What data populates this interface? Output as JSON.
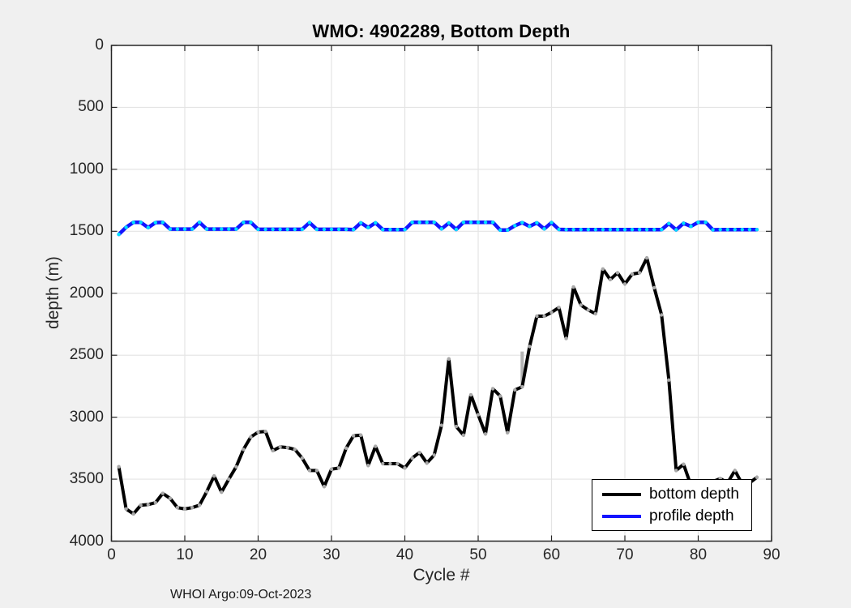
{
  "figure": {
    "background_color": "#f0f0f0",
    "plot_background_color": "#ffffff",
    "axis_color": "#262626",
    "grid_color": "#e4e4e4",
    "footer": "WHOI Argo:09-Oct-2023"
  },
  "chart_data": {
    "type": "line",
    "title": "WMO: 4902289, Bottom Depth",
    "xlabel": "Cycle #",
    "ylabel": "depth (m)",
    "xlim": [
      0,
      90
    ],
    "ylim": [
      0,
      4000
    ],
    "y_axis_reversed_depth_down": true,
    "grid": true,
    "xticks": [
      0,
      10,
      20,
      30,
      40,
      50,
      60,
      70,
      80,
      90
    ],
    "yticks": [
      0,
      500,
      1000,
      1500,
      2000,
      2500,
      3000,
      3500,
      4000
    ],
    "legend": {
      "position": "bottom-right",
      "entries": [
        {
          "label": "bottom depth",
          "color": "#000000"
        },
        {
          "label": "profile depth",
          "color": "#1414ff"
        }
      ]
    },
    "series": [
      {
        "name": "bottom depth",
        "color": "#000000",
        "marker_color": "#a9a9a9",
        "line_width": 4,
        "x": [
          1,
          2,
          3,
          4,
          5,
          6,
          7,
          8,
          9,
          10,
          11,
          12,
          13,
          14,
          15,
          16,
          17,
          18,
          19,
          20,
          21,
          22,
          23,
          24,
          25,
          26,
          27,
          28,
          29,
          30,
          31,
          32,
          33,
          34,
          35,
          36,
          37,
          38,
          39,
          40,
          41,
          42,
          43,
          44,
          45,
          46,
          47,
          48,
          49,
          50,
          51,
          52,
          53,
          54,
          55,
          56,
          57,
          58,
          59,
          60,
          61,
          62,
          63,
          64,
          65,
          66,
          67,
          68,
          69,
          70,
          71,
          72,
          73,
          74,
          75,
          76,
          77,
          78,
          79,
          80,
          81,
          82,
          83,
          84,
          85,
          86,
          87,
          88
        ],
        "y": [
          3400,
          3740,
          3780,
          3710,
          3705,
          3690,
          3615,
          3655,
          3730,
          3740,
          3730,
          3710,
          3600,
          3475,
          3605,
          3500,
          3400,
          3260,
          3160,
          3120,
          3115,
          3270,
          3240,
          3245,
          3260,
          3330,
          3430,
          3430,
          3560,
          3420,
          3410,
          3250,
          3150,
          3145,
          3390,
          3235,
          3375,
          3375,
          3375,
          3410,
          3330,
          3285,
          3370,
          3305,
          3065,
          2530,
          3075,
          3145,
          2820,
          2980,
          3135,
          2770,
          2830,
          3125,
          2780,
          2755,
          2430,
          2185,
          2185,
          2155,
          2115,
          2365,
          1950,
          2095,
          2135,
          2165,
          1805,
          1890,
          1835,
          1925,
          1845,
          1835,
          1715,
          1955,
          2175,
          2700,
          3430,
          3380,
          3550,
          3570,
          3560,
          3520,
          3495,
          3530,
          3430,
          3540,
          3530,
          3485
        ]
      },
      {
        "name": "profile depth",
        "color": "#1414ff",
        "marker_color": "#00e0ff",
        "line_width": 4.5,
        "x": [
          1,
          2,
          3,
          4,
          5,
          6,
          7,
          8,
          9,
          10,
          11,
          12,
          13,
          14,
          15,
          16,
          17,
          18,
          19,
          20,
          21,
          22,
          23,
          24,
          25,
          26,
          27,
          28,
          29,
          30,
          31,
          32,
          33,
          34,
          35,
          36,
          37,
          38,
          39,
          40,
          41,
          42,
          43,
          44,
          45,
          46,
          47,
          48,
          49,
          50,
          51,
          52,
          53,
          54,
          55,
          56,
          57,
          58,
          59,
          60,
          61,
          62,
          63,
          64,
          65,
          66,
          67,
          68,
          69,
          70,
          71,
          72,
          73,
          74,
          75,
          76,
          77,
          78,
          79,
          80,
          81,
          82,
          83,
          84,
          85,
          86,
          87,
          88
        ],
        "y": [
          1525,
          1468,
          1428,
          1428,
          1470,
          1430,
          1428,
          1482,
          1482,
          1482,
          1482,
          1428,
          1482,
          1482,
          1482,
          1482,
          1482,
          1428,
          1428,
          1484,
          1484,
          1484,
          1484,
          1484,
          1484,
          1484,
          1430,
          1484,
          1484,
          1484,
          1484,
          1484,
          1486,
          1432,
          1470,
          1432,
          1486,
          1486,
          1486,
          1486,
          1427,
          1427,
          1427,
          1427,
          1480,
          1433,
          1485,
          1427,
          1427,
          1427,
          1427,
          1427,
          1490,
          1490,
          1455,
          1430,
          1460,
          1432,
          1480,
          1430,
          1485,
          1486,
          1486,
          1486,
          1486,
          1486,
          1486,
          1486,
          1486,
          1486,
          1486,
          1486,
          1486,
          1486,
          1486,
          1438,
          1488,
          1435,
          1460,
          1427,
          1427,
          1488,
          1486,
          1486,
          1486,
          1486,
          1486,
          1486
        ]
      }
    ],
    "gray_bar": {
      "cycle": 56,
      "from_depth": 2470,
      "to_depth": 2755,
      "color": "#b4b4b4"
    }
  }
}
